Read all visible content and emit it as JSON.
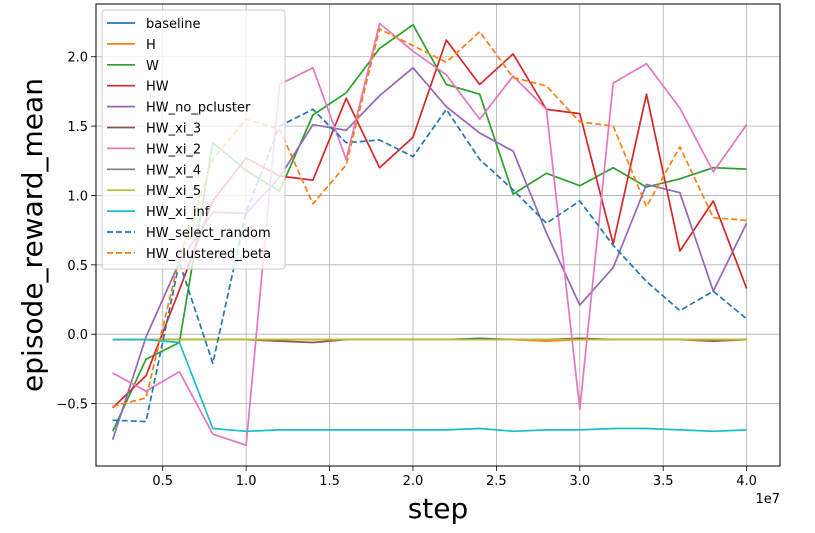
{
  "chart_data": {
    "type": "line",
    "title": "",
    "xlabel": "step",
    "ylabel": "episode_reward_mean",
    "x_offset_label": "1e7",
    "xlim": [
      0.1,
      4.2
    ],
    "ylim": [
      -0.95,
      2.38
    ],
    "grid": true,
    "legend_position": "top-left",
    "xticks": [
      0.5,
      1.0,
      1.5,
      2.0,
      2.5,
      3.0,
      3.5,
      4.0
    ],
    "xtick_labels": [
      "0.5",
      "1.0",
      "1.5",
      "2.0",
      "2.5",
      "3.0",
      "3.5",
      "4.0"
    ],
    "yticks": [
      -0.5,
      0.0,
      0.5,
      1.0,
      1.5,
      2.0
    ],
    "ytick_labels": [
      "−0.5",
      "0.0",
      "0.5",
      "1.0",
      "1.5",
      "2.0"
    ],
    "x": [
      0.2,
      0.4,
      0.6,
      0.8,
      1.0,
      1.2,
      1.4,
      1.6,
      1.8,
      2.0,
      2.2,
      2.4,
      2.6,
      2.8,
      3.0,
      3.2,
      3.4,
      3.6,
      3.8,
      4.0
    ],
    "series": [
      {
        "name": "baseline",
        "color": "#1f77b4",
        "dash": "solid",
        "values": [
          -0.04,
          -0.04,
          -0.04,
          -0.04,
          -0.04,
          -0.04,
          -0.04,
          -0.04,
          -0.04,
          -0.04,
          -0.04,
          -0.03,
          -0.04,
          -0.04,
          -0.04,
          -0.04,
          -0.04,
          -0.04,
          -0.04,
          -0.04
        ]
      },
      {
        "name": "H",
        "color": "#ff7f0e",
        "dash": "solid",
        "values": [
          -0.04,
          -0.04,
          -0.04,
          -0.04,
          -0.04,
          -0.04,
          -0.04,
          -0.04,
          -0.04,
          -0.04,
          -0.04,
          -0.04,
          -0.04,
          -0.05,
          -0.04,
          -0.04,
          -0.04,
          -0.04,
          -0.04,
          -0.04
        ]
      },
      {
        "name": "W",
        "color": "#2ca02c",
        "dash": "solid",
        "values": [
          -0.7,
          -0.18,
          -0.06,
          1.38,
          1.18,
          1.03,
          1.58,
          1.74,
          2.06,
          2.23,
          1.8,
          1.73,
          1.01,
          1.16,
          1.07,
          1.2,
          1.06,
          1.12,
          1.2,
          1.19
        ]
      },
      {
        "name": "HW",
        "color": "#d62728",
        "dash": "solid",
        "values": [
          -0.53,
          -0.3,
          0.32,
          0.96,
          1.27,
          1.14,
          1.11,
          1.7,
          1.2,
          1.42,
          2.12,
          1.8,
          2.02,
          1.62,
          1.59,
          0.65,
          1.73,
          0.6,
          0.96,
          0.33
        ]
      },
      {
        "name": "HW_no_pcluster",
        "color": "#9467bd",
        "dash": "solid",
        "values": [
          -0.76,
          -0.02,
          0.52,
          0.88,
          0.87,
          1.13,
          1.51,
          1.47,
          1.72,
          1.92,
          1.64,
          1.45,
          1.32,
          0.73,
          0.21,
          0.48,
          1.08,
          1.02,
          0.31,
          0.8
        ]
      },
      {
        "name": "HW_xi_3",
        "color": "#8c564b",
        "dash": "solid",
        "values": [
          -0.04,
          -0.04,
          -0.04,
          -0.04,
          -0.04,
          -0.05,
          -0.06,
          -0.04,
          -0.04,
          -0.04,
          -0.04,
          -0.04,
          -0.04,
          -0.04,
          -0.03,
          -0.04,
          -0.04,
          -0.04,
          -0.05,
          -0.04
        ]
      },
      {
        "name": "HW_xi_2",
        "color": "#e377c2",
        "dash": "solid",
        "values": [
          -0.28,
          -0.41,
          -0.27,
          -0.72,
          -0.8,
          1.8,
          1.92,
          1.26,
          2.24,
          2.04,
          1.87,
          1.55,
          1.86,
          1.62,
          -0.54,
          1.81,
          1.95,
          1.63,
          1.17,
          1.51
        ]
      },
      {
        "name": "HW_xi_4",
        "color": "#7f7f7f",
        "dash": "solid",
        "values": [
          -0.04,
          -0.04,
          -0.04,
          -0.04,
          -0.04,
          -0.04,
          -0.04,
          -0.04,
          -0.04,
          -0.04,
          -0.04,
          -0.04,
          -0.04,
          -0.04,
          -0.04,
          -0.04,
          -0.04,
          -0.04,
          -0.04,
          -0.04
        ]
      },
      {
        "name": "HW_xi_5",
        "color": "#bcbd22",
        "dash": "solid",
        "values": [
          -0.04,
          -0.04,
          -0.04,
          -0.04,
          -0.04,
          -0.04,
          -0.04,
          -0.04,
          -0.04,
          -0.04,
          -0.04,
          -0.04,
          -0.04,
          -0.04,
          -0.04,
          -0.04,
          -0.04,
          -0.04,
          -0.04,
          -0.04
        ]
      },
      {
        "name": "HW_xi_inf",
        "color": "#17becf",
        "dash": "solid",
        "values": [
          -0.04,
          -0.04,
          -0.06,
          -0.68,
          -0.7,
          -0.69,
          -0.69,
          -0.69,
          -0.69,
          -0.69,
          -0.69,
          -0.68,
          -0.7,
          -0.69,
          -0.69,
          -0.68,
          -0.68,
          -0.69,
          -0.7,
          -0.69
        ]
      },
      {
        "name": "HW_select_random",
        "color": "#1f77b4",
        "dash": "dashed",
        "values": [
          -0.62,
          -0.63,
          0.52,
          -0.21,
          0.88,
          1.5,
          1.62,
          1.38,
          1.4,
          1.28,
          1.62,
          1.26,
          1.04,
          0.8,
          0.96,
          0.64,
          0.38,
          0.17,
          0.31,
          0.11
        ]
      },
      {
        "name": "HW_clustered_beta",
        "color": "#ff7f0e",
        "dash": "dashed",
        "values": [
          -0.52,
          -0.46,
          0.55,
          1.26,
          1.55,
          1.48,
          0.94,
          1.22,
          2.2,
          2.08,
          1.96,
          2.18,
          1.85,
          1.79,
          1.53,
          1.5,
          0.92,
          1.35,
          0.84,
          0.82
        ]
      }
    ]
  }
}
